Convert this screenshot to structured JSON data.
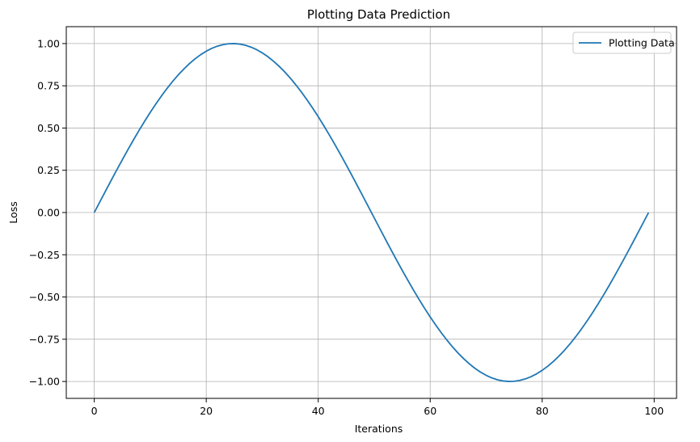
{
  "chart_data": {
    "type": "line",
    "title": "Plotting Data Prediction",
    "xlabel": "Iterations",
    "ylabel": "Loss",
    "xlim": [
      -5,
      104
    ],
    "ylim": [
      -1.1,
      1.1
    ],
    "grid": true,
    "legend_position": "top-right",
    "x_ticks": [
      0,
      20,
      40,
      60,
      80,
      100
    ],
    "y_ticks": [
      -1.0,
      -0.75,
      -0.5,
      -0.25,
      0.0,
      0.25,
      0.5,
      0.75,
      1.0
    ],
    "x_tick_labels": [
      "0",
      "20",
      "40",
      "60",
      "80",
      "100"
    ],
    "y_tick_labels": [
      "−1.00",
      "−0.75",
      "−0.50",
      "−0.25",
      "0.00",
      "0.25",
      "0.50",
      "0.75",
      "1.00"
    ],
    "series": [
      {
        "name": "Plotting Data",
        "color": "#1f77b4",
        "x": [
          0,
          1,
          2,
          3,
          4,
          5,
          6,
          7,
          8,
          9,
          10,
          11,
          12,
          13,
          14,
          15,
          16,
          17,
          18,
          19,
          20,
          21,
          22,
          23,
          24,
          25,
          26,
          27,
          28,
          29,
          30,
          31,
          32,
          33,
          34,
          35,
          36,
          37,
          38,
          39,
          40,
          41,
          42,
          43,
          44,
          45,
          46,
          47,
          48,
          49,
          50,
          51,
          52,
          53,
          54,
          55,
          56,
          57,
          58,
          59,
          60,
          61,
          62,
          63,
          64,
          65,
          66,
          67,
          68,
          69,
          70,
          71,
          72,
          73,
          74,
          75,
          76,
          77,
          78,
          79,
          80,
          81,
          82,
          83,
          84,
          85,
          86,
          87,
          88,
          89,
          90,
          91,
          92,
          93,
          94,
          95,
          96,
          97,
          98,
          99
        ],
        "y": [
          0.0,
          0.0634,
          0.1266,
          0.1893,
          0.2511,
          0.312,
          0.3717,
          0.4298,
          0.4862,
          0.5406,
          0.5929,
          0.6428,
          0.6901,
          0.7346,
          0.7761,
          0.8146,
          0.8497,
          0.8815,
          0.9096,
          0.9341,
          0.9549,
          0.9718,
          0.9848,
          0.9938,
          0.9989,
          0.9999,
          0.9969,
          0.9898,
          0.9788,
          0.9638,
          0.945,
          0.9224,
          0.896,
          0.866,
          0.8326,
          0.7958,
          0.7557,
          0.7127,
          0.6668,
          0.6182,
          0.5671,
          0.5137,
          0.4582,
          0.4009,
          0.342,
          0.2817,
          0.2203,
          0.158,
          0.0951,
          0.0317,
          -0.0317,
          -0.0951,
          -0.158,
          -0.2203,
          -0.2817,
          -0.342,
          -0.4009,
          -0.4582,
          -0.5137,
          -0.5671,
          -0.6182,
          -0.6668,
          -0.7127,
          -0.7557,
          -0.7958,
          -0.8326,
          -0.866,
          -0.896,
          -0.9224,
          -0.945,
          -0.9638,
          -0.9788,
          -0.9898,
          -0.9969,
          -0.9999,
          -0.9989,
          -0.9938,
          -0.9848,
          -0.9718,
          -0.9549,
          -0.9341,
          -0.9096,
          -0.8815,
          -0.8497,
          -0.8146,
          -0.7761,
          -0.7346,
          -0.6901,
          -0.6428,
          -0.5929,
          -0.5406,
          -0.4862,
          -0.4298,
          -0.3717,
          -0.312,
          -0.2511,
          -0.1893,
          -0.1266,
          -0.0634,
          0.0
        ]
      }
    ]
  }
}
